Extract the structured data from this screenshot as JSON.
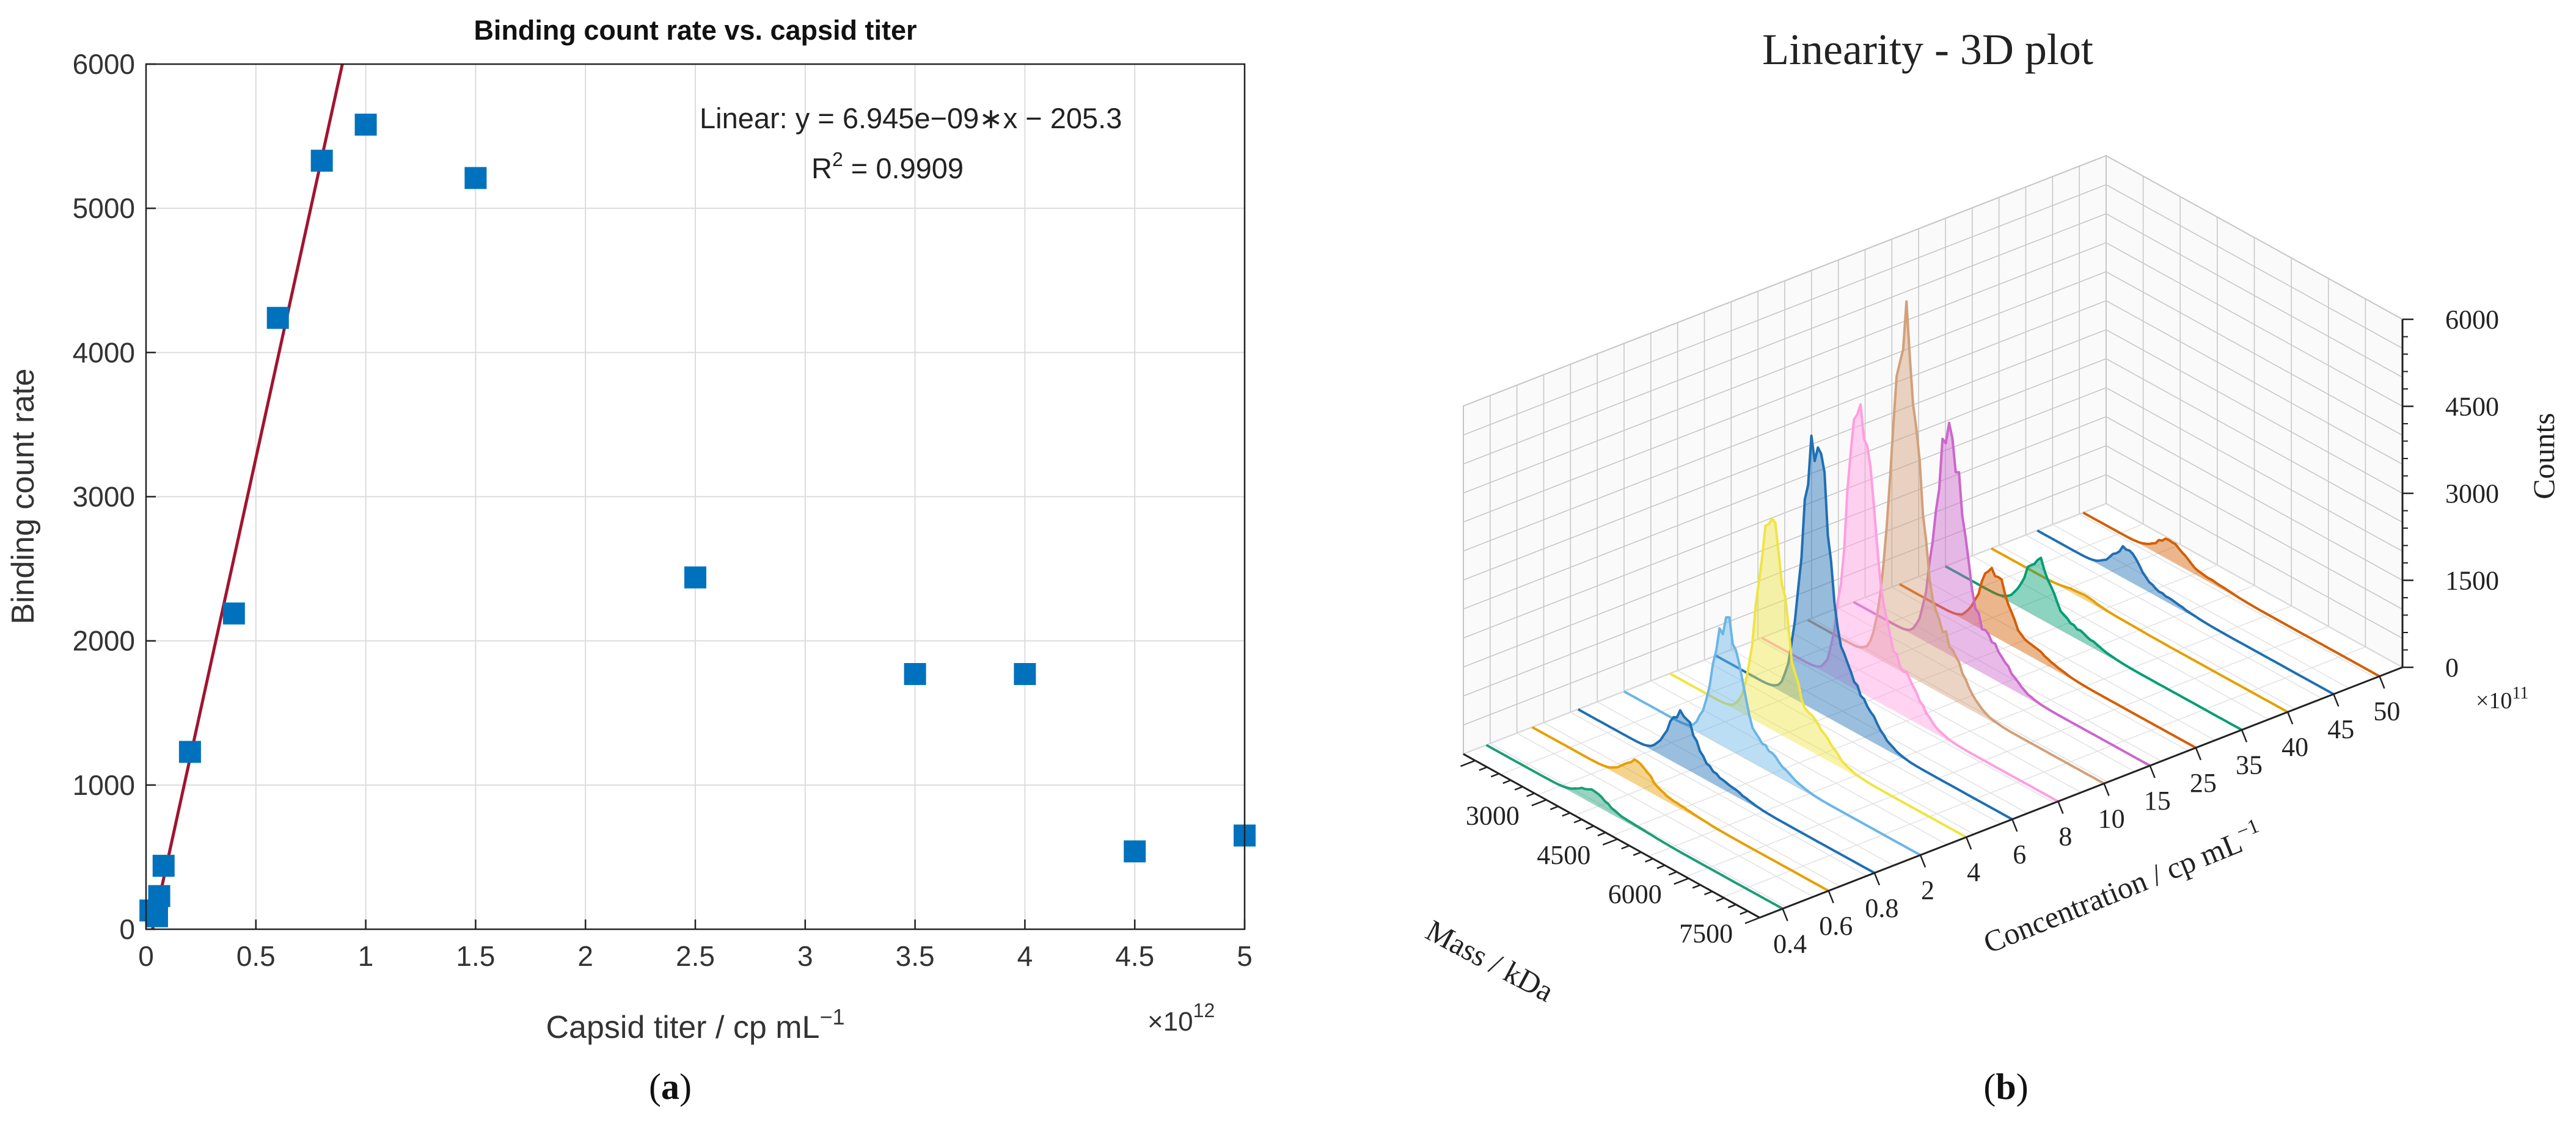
{
  "chart_data": [
    {
      "panel": "a",
      "type": "scatter",
      "title": "Binding count rate vs. capsid titer",
      "xlabel": "Capsid titer / cp mL",
      "xlabel_sup": "−1",
      "ylabel": "Binding count rate",
      "x_exponent": "×10",
      "x_exponent_sup": "12",
      "xlim": [
        0,
        5
      ],
      "ylim": [
        0,
        6000
      ],
      "xticks": [
        "0",
        "0.5",
        "1",
        "1.5",
        "2",
        "2.5",
        "3",
        "3.5",
        "4",
        "4.5",
        "5"
      ],
      "yticks": [
        "0",
        "1000",
        "2000",
        "3000",
        "4000",
        "5000",
        "6000"
      ],
      "grid": true,
      "marker": "square",
      "series": [
        {
          "name": "Binding count rate",
          "color": "#0072BD",
          "x": [
            0.02,
            0.05,
            0.06,
            0.08,
            0.2,
            0.4,
            0.6,
            0.8,
            1.0,
            1.5,
            2.5,
            3.5,
            4.0,
            4.5,
            5.0
          ],
          "y": [
            130,
            90,
            230,
            440,
            1230,
            2190,
            4240,
            5330,
            5580,
            5210,
            2440,
            1770,
            1770,
            540,
            650
          ]
        }
      ],
      "fit": {
        "label": "Linear:  y = 6.945e−09∗x − 205.3",
        "r2_label": "R",
        "r2_sup": "2",
        "r2_value": " = 0.9909",
        "slope": 6.945,
        "intercept": -205.3,
        "color": "#A2142F"
      }
    },
    {
      "panel": "b",
      "type": "line",
      "title": "Linearity - 3D plot",
      "xlabel": "Mass / kDa",
      "ylabel": "Concentration / cp mL",
      "ylabel_sup": "−1",
      "zlabel": "Counts",
      "mass_ticks": [
        "3000",
        "4500",
        "6000",
        "7500"
      ],
      "concentration_ticks": [
        "0.4",
        "0.6",
        "0.8",
        "2",
        "4",
        "6",
        "8",
        "10",
        "15",
        "25",
        "35",
        "40",
        "45",
        "50"
      ],
      "concentration_exponent": "×10",
      "concentration_exponent_sup": "11",
      "z_ticks": [
        "0",
        "1500",
        "3000",
        "4500",
        "6000"
      ],
      "zlim": [
        0,
        6000
      ],
      "series": [
        {
          "name": "0.4",
          "color": "#1b9e77",
          "peak": 220
        },
        {
          "name": "0.6",
          "color": "#e69f00",
          "peak": 380
        },
        {
          "name": "0.8",
          "color": "#1f6fb4",
          "peak": 900
        },
        {
          "name": "2",
          "color": "#6bb6e6",
          "peak": 2050
        },
        {
          "name": "4",
          "color": "#f0e442",
          "peak": 3450
        },
        {
          "name": "6",
          "color": "#1f6fb4",
          "peak": 4500
        },
        {
          "name": "8",
          "color": "#ff9ee0",
          "peak": 4800
        },
        {
          "name": "10",
          "color": "#d2a07a",
          "peak": 5750
        },
        {
          "name": "15",
          "color": "#cc66cc",
          "peak": 3700
        },
        {
          "name": "25",
          "color": "#d55e00",
          "peak": 1100
        },
        {
          "name": "35",
          "color": "#009e73",
          "peak": 950
        },
        {
          "name": "40",
          "color": "#e69f00",
          "peak": 80
        },
        {
          "name": "45",
          "color": "#1f6fb4",
          "peak": 500
        },
        {
          "name": "50",
          "color": "#d55e00",
          "peak": 330
        }
      ]
    }
  ],
  "captions": {
    "a_open": "(",
    "a_letter": "a",
    "a_close": ")",
    "b_open": "(",
    "b_letter": "b",
    "b_close": ")"
  }
}
